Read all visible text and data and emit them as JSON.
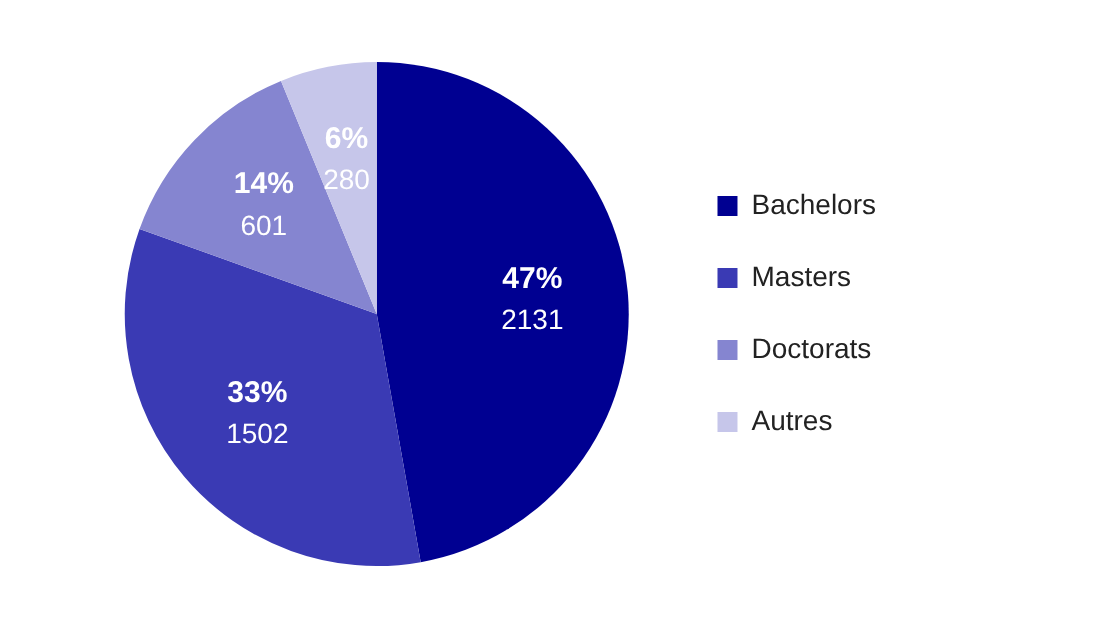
{
  "chart_data": {
    "type": "pie",
    "categories": [
      "Bachelors",
      "Masters",
      "Doctorats",
      "Autres"
    ],
    "values": [
      2131,
      1502,
      601,
      280
    ],
    "colors": [
      "#000091",
      "#3a3ab4",
      "#8585d0",
      "#c6c6ea"
    ],
    "value_labels": [
      "47%\n2131",
      "33%\n1502",
      "14%\n601",
      "6%\n280"
    ],
    "legend": "right"
  }
}
